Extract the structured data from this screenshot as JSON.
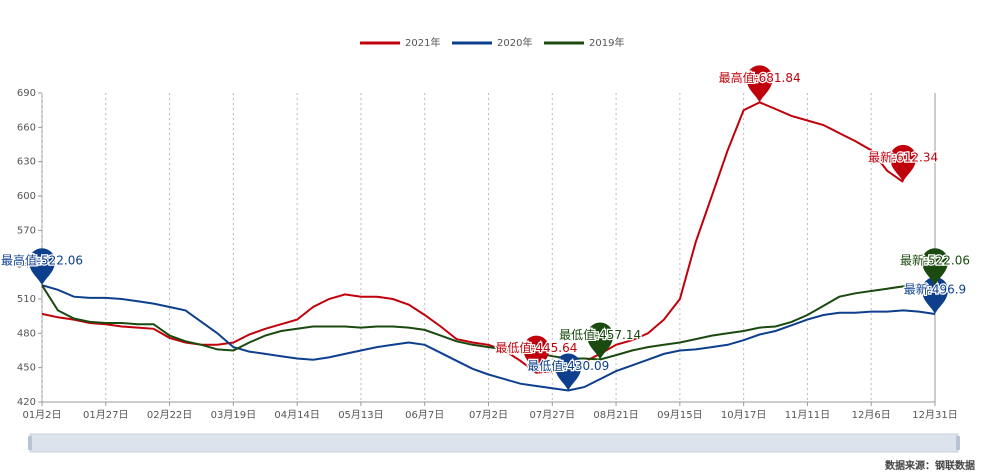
{
  "chart_data": {
    "type": "line",
    "categories": [
      "01月2日",
      null,
      null,
      null,
      "01月27日",
      null,
      null,
      null,
      "02月22日",
      null,
      null,
      null,
      "03月19日",
      null,
      null,
      null,
      "04月14日",
      null,
      null,
      null,
      "05月13日",
      null,
      null,
      null,
      "06月7日",
      null,
      null,
      null,
      "07月2日",
      null,
      null,
      null,
      "07月27日",
      null,
      null,
      null,
      "08月21日",
      null,
      null,
      null,
      "09月15日",
      null,
      null,
      null,
      "10月17日",
      null,
      null,
      null,
      "11月11日",
      null,
      null,
      null,
      "12月6日",
      null,
      null,
      null,
      "12月31日"
    ],
    "series": [
      {
        "name": "2021年",
        "color": "#c0000b",
        "values": [
          497,
          494,
          492,
          489,
          488,
          486,
          485,
          484,
          476,
          472,
          470,
          470,
          472,
          479,
          484,
          488,
          492,
          503,
          510,
          514,
          512,
          512,
          510,
          505,
          496,
          486,
          475,
          472,
          470,
          465,
          456,
          445.64,
          447,
          446,
          455,
          462,
          470,
          474,
          480,
          492,
          510,
          560,
          600,
          640,
          675,
          681.84,
          676,
          670,
          666,
          662,
          655,
          648,
          640,
          622,
          612.34,
          null,
          null
        ],
        "value_labels": [
          null,
          null,
          null,
          null,
          null,
          null,
          null,
          null,
          null,
          null,
          null,
          null,
          null,
          null,
          null,
          null,
          null,
          null,
          null,
          null,
          null,
          null,
          null,
          null,
          null,
          null,
          null,
          null,
          null,
          null,
          null,
          "最低值:445.64",
          null,
          null,
          null,
          null,
          null,
          null,
          null,
          null,
          null,
          null,
          null,
          null,
          null,
          "最高值:681.84",
          null,
          null,
          null,
          null,
          null,
          null,
          null,
          null,
          "最新:612.34",
          null,
          null
        ]
      },
      {
        "name": "2020年",
        "color": "#0d3f8c",
        "values": [
          522.06,
          518,
          512,
          511,
          511,
          510,
          508,
          506,
          503,
          500,
          490,
          480,
          468,
          464,
          462,
          460,
          458,
          457,
          459,
          462,
          465,
          468,
          470,
          472,
          470,
          463,
          456,
          449,
          444,
          440,
          436,
          434,
          432,
          430.09,
          433,
          440,
          447,
          452,
          457,
          462,
          465,
          466,
          468,
          470,
          474,
          479,
          482,
          487,
          492,
          496,
          498,
          498,
          499,
          499,
          500,
          499,
          496.9
        ],
        "value_labels": [
          "最高值:522.06",
          null,
          null,
          null,
          null,
          null,
          null,
          null,
          null,
          null,
          null,
          null,
          null,
          null,
          null,
          null,
          null,
          null,
          null,
          null,
          null,
          null,
          null,
          null,
          null,
          null,
          null,
          null,
          null,
          null,
          null,
          null,
          null,
          "最低值:430.09",
          null,
          null,
          null,
          null,
          null,
          null,
          null,
          null,
          null,
          null,
          null,
          null,
          null,
          null,
          null,
          null,
          null,
          null,
          null,
          null,
          null,
          null,
          "最新:496.9"
        ]
      },
      {
        "name": "2019年",
        "color": "#1a4a0f",
        "values": [
          522,
          500,
          493,
          490,
          489,
          489,
          488,
          488,
          478,
          473,
          470,
          466,
          465,
          472,
          478,
          482,
          484,
          486,
          486,
          486,
          485,
          486,
          486,
          485,
          483,
          478,
          473,
          470,
          468,
          466,
          465,
          463,
          460,
          458,
          458,
          457.14,
          461,
          465,
          468,
          470,
          472,
          475,
          478,
          480,
          482,
          485,
          486,
          490,
          496,
          504,
          512,
          515,
          517,
          519,
          521,
          522,
          522.06
        ],
        "value_labels": [
          null,
          null,
          null,
          null,
          null,
          null,
          null,
          null,
          null,
          null,
          null,
          null,
          null,
          null,
          null,
          null,
          null,
          null,
          null,
          null,
          null,
          null,
          null,
          null,
          null,
          null,
          null,
          null,
          null,
          null,
          null,
          null,
          null,
          null,
          null,
          "最低值:457.14",
          null,
          null,
          null,
          null,
          null,
          null,
          null,
          null,
          null,
          null,
          null,
          null,
          null,
          null,
          null,
          null,
          null,
          null,
          null,
          null,
          "最新:522.06"
        ]
      }
    ],
    "ylim": [
      420,
      690
    ],
    "yticks": [
      420,
      450,
      480,
      510,
      540,
      570,
      600,
      630,
      660,
      690
    ],
    "grid": true,
    "legend": "top",
    "source": "数据来源：钢联数据"
  }
}
